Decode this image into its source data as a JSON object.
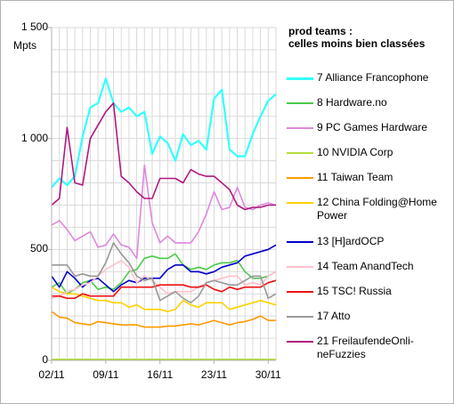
{
  "chart_data": {
    "type": "line",
    "title": "prod teams :\ncelles moins bien classées",
    "ylabel": "Mpts",
    "ylim": [
      0,
      1500
    ],
    "yticks": [
      "0",
      "500",
      "1 000",
      "1 500"
    ],
    "xticks": [
      "02/11",
      "09/11",
      "16/11",
      "23/11",
      "30/11"
    ],
    "grid": true,
    "legend_position": "right",
    "x": [
      "02/11",
      "03/11",
      "04/11",
      "05/11",
      "06/11",
      "07/11",
      "08/11",
      "09/11",
      "10/11",
      "11/11",
      "12/11",
      "13/11",
      "14/11",
      "15/11",
      "16/11",
      "17/11",
      "18/11",
      "19/11",
      "20/11",
      "21/11",
      "22/11",
      "23/11",
      "24/11",
      "25/11",
      "26/11",
      "27/11",
      "28/11",
      "29/11",
      "30/11",
      "31/11"
    ],
    "series": [
      {
        "name": "7 Alliance Francophone",
        "color": "#33ffff",
        "values": [
          780,
          820,
          790,
          830,
          1010,
          1140,
          1160,
          1270,
          1160,
          1120,
          1140,
          1100,
          1120,
          930,
          1010,
          980,
          900,
          1020,
          970,
          990,
          950,
          1180,
          1220,
          950,
          920,
          920,
          1020,
          1100,
          1170,
          1200
        ]
      },
      {
        "name": "8 Hardware.no",
        "color": "#4cc94c",
        "values": [
          330,
          350,
          300,
          320,
          350,
          360,
          320,
          330,
          320,
          350,
          400,
          410,
          460,
          470,
          460,
          460,
          480,
          430,
          410,
          420,
          410,
          430,
          440,
          440,
          450,
          400,
          370,
          370,
          380,
          400
        ]
      },
      {
        "name": "9 PC Games Hardware",
        "color": "#dd88dd",
        "values": [
          610,
          630,
          590,
          540,
          560,
          580,
          510,
          520,
          570,
          520,
          510,
          460,
          880,
          620,
          530,
          560,
          530,
          530,
          530,
          580,
          660,
          760,
          680,
          690,
          780,
          690,
          680,
          700,
          710,
          700
        ]
      },
      {
        "name": "10 NVIDIA Corp",
        "color": "#b3e03c",
        "values": [
          5,
          5,
          5,
          5,
          5,
          5,
          5,
          5,
          5,
          5,
          5,
          5,
          5,
          5,
          5,
          5,
          5,
          5,
          5,
          5,
          5,
          5,
          5,
          5,
          5,
          5,
          5,
          5,
          5,
          5
        ]
      },
      {
        "name": "11 Taiwan Team",
        "color": "#ff9900",
        "values": [
          220,
          195,
          190,
          170,
          165,
          160,
          175,
          170,
          165,
          160,
          160,
          160,
          150,
          150,
          150,
          155,
          155,
          160,
          165,
          160,
          170,
          180,
          170,
          160,
          170,
          175,
          185,
          200,
          180,
          180
        ]
      },
      {
        "name": "12 China Folding@Home Power",
        "color": "#ffd100",
        "values": [
          330,
          310,
          300,
          300,
          290,
          280,
          270,
          270,
          260,
          260,
          240,
          250,
          230,
          230,
          230,
          220,
          230,
          270,
          250,
          240,
          260,
          260,
          260,
          230,
          240,
          250,
          260,
          270,
          260,
          250
        ]
      },
      {
        "name": "13 [H]ardOCP",
        "color": "#0000cc",
        "values": [
          380,
          330,
          400,
          370,
          330,
          360,
          370,
          340,
          310,
          340,
          360,
          350,
          370,
          370,
          370,
          410,
          430,
          430,
          400,
          400,
          390,
          400,
          420,
          430,
          440,
          470,
          480,
          490,
          500,
          520
        ]
      },
      {
        "name": "14 Team AnandTech",
        "color": "#ffc0cb",
        "values": [
          280,
          290,
          310,
          320,
          340,
          350,
          380,
          410,
          430,
          450,
          420,
          350,
          380,
          360,
          330,
          300,
          310,
          310,
          310,
          330,
          350,
          360,
          370,
          380,
          380,
          340,
          350,
          340,
          380,
          400
        ]
      },
      {
        "name": "15 TSC! Russia",
        "color": "#ee1111",
        "values": [
          290,
          290,
          280,
          280,
          300,
          290,
          290,
          290,
          290,
          330,
          330,
          330,
          330,
          330,
          340,
          340,
          340,
          340,
          330,
          330,
          340,
          320,
          310,
          330,
          320,
          330,
          330,
          330,
          350,
          360
        ]
      },
      {
        "name": "17 Atto",
        "color": "#999999",
        "values": [
          430,
          430,
          430,
          380,
          390,
          380,
          380,
          440,
          530,
          480,
          440,
          380,
          360,
          370,
          270,
          290,
          310,
          280,
          260,
          290,
          350,
          360,
          350,
          340,
          340,
          360,
          380,
          380,
          280,
          300
        ]
      },
      {
        "name": "21 FreilaufendeOnli-neFuzzies",
        "color": "#b0197e",
        "values": [
          700,
          730,
          1050,
          800,
          790,
          1000,
          1060,
          1120,
          1160,
          830,
          800,
          760,
          730,
          730,
          820,
          820,
          820,
          800,
          860,
          840,
          830,
          830,
          800,
          770,
          700,
          680,
          690,
          690,
          700,
          700
        ]
      }
    ]
  }
}
